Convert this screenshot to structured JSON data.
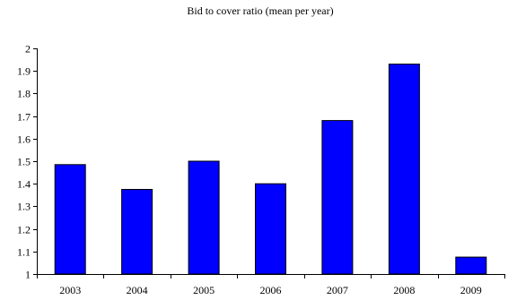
{
  "chart_data": {
    "type": "bar",
    "title": "Bid to cover ratio (mean per year)",
    "xlabel": "",
    "ylabel": "",
    "categories": [
      "2003",
      "2004",
      "2005",
      "2006",
      "2007",
      "2008",
      "2009"
    ],
    "values": [
      1.485,
      1.375,
      1.5,
      1.4,
      1.68,
      1.93,
      1.075
    ],
    "ylim": [
      1,
      2
    ],
    "yticks": [
      1,
      1.1,
      1.2,
      1.3,
      1.4,
      1.5,
      1.6,
      1.7,
      1.8,
      1.9,
      2
    ],
    "ytick_labels": [
      "1",
      "1.1",
      "1.2",
      "1.3",
      "1.4",
      "1.5",
      "1.6",
      "1.7",
      "1.8",
      "1.9",
      "2"
    ],
    "grid": false,
    "legend": "none",
    "bar_color": "#0000ff"
  }
}
